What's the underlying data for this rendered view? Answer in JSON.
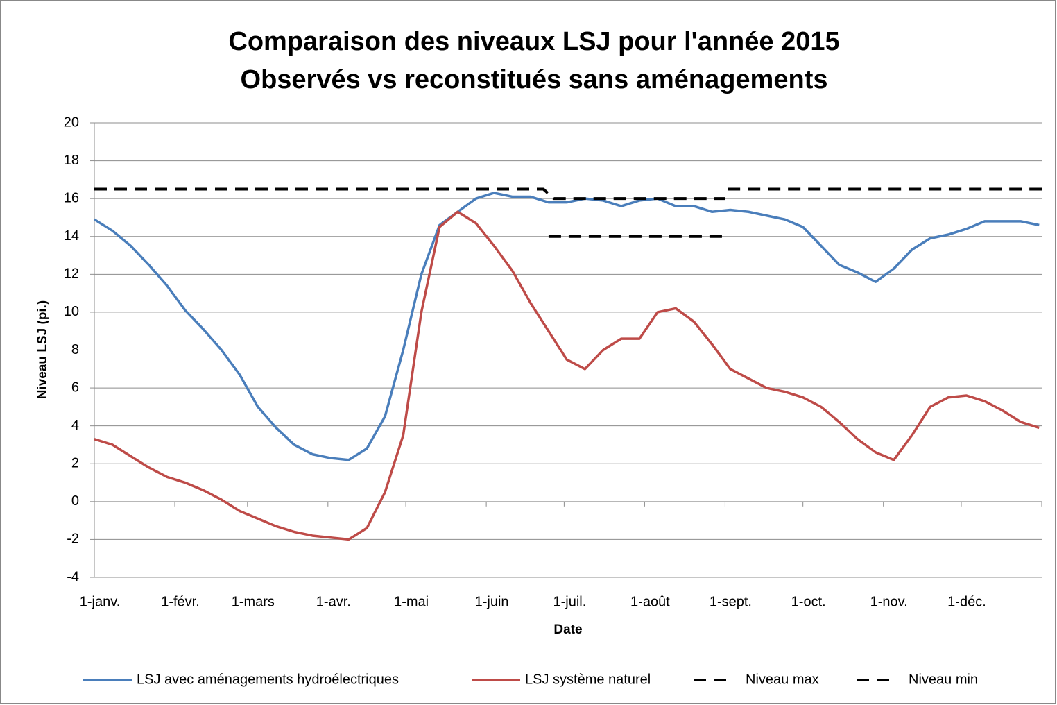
{
  "chart_data": {
    "type": "line",
    "title": "Comparaison des niveaux LSJ pour l'année 2015",
    "subtitle": "Observés vs reconstitués sans aménagements",
    "x_label": "Date",
    "y_label": "Niveau LSJ (pi.)",
    "xlim": [
      0,
      365
    ],
    "ylim": [
      -4,
      20
    ],
    "yticks": [
      -4,
      -2,
      0,
      2,
      4,
      6,
      8,
      10,
      12,
      14,
      16,
      18,
      20
    ],
    "xticks": [
      {
        "value": 0,
        "label": "1-janv."
      },
      {
        "value": 31,
        "label": "1-févr."
      },
      {
        "value": 59,
        "label": "1-mars"
      },
      {
        "value": 90,
        "label": "1-avr."
      },
      {
        "value": 120,
        "label": "1-mai"
      },
      {
        "value": 151,
        "label": "1-juin"
      },
      {
        "value": 181,
        "label": "1-juil."
      },
      {
        "value": 212,
        "label": "1-août"
      },
      {
        "value": 243,
        "label": "1-sept."
      },
      {
        "value": 273,
        "label": "1-oct."
      },
      {
        "value": 304,
        "label": "1-nov."
      },
      {
        "value": 334,
        "label": "1-déc."
      }
    ],
    "grid": true,
    "legend": "bottom",
    "x": [
      0,
      7,
      14,
      21,
      28,
      35,
      42,
      49,
      56,
      63,
      70,
      77,
      84,
      91,
      98,
      105,
      112,
      119,
      126,
      133,
      140,
      147,
      154,
      161,
      168,
      175,
      182,
      189,
      196,
      203,
      210,
      217,
      224,
      231,
      238,
      245,
      252,
      259,
      266,
      273,
      280,
      287,
      294,
      301,
      308,
      315,
      322,
      329,
      336,
      343,
      350,
      357,
      364
    ],
    "series": [
      {
        "name": "LSJ avec aménagements hydroélectriques",
        "color": "#4a7ebb",
        "dash": false,
        "values": [
          14.9,
          14.3,
          13.5,
          12.5,
          11.4,
          10.1,
          9.1,
          8.0,
          6.7,
          5.0,
          3.9,
          3.0,
          2.5,
          2.3,
          2.2,
          2.8,
          4.5,
          8.0,
          12.0,
          14.6,
          15.3,
          16.0,
          16.3,
          16.1,
          16.1,
          15.8,
          15.8,
          16.0,
          15.9,
          15.6,
          15.9,
          16.0,
          15.6,
          15.6,
          15.3,
          15.4,
          15.3,
          15.1,
          14.9,
          14.5,
          13.5,
          12.5,
          12.1,
          11.6,
          12.3,
          13.3,
          13.9,
          14.1,
          14.4,
          14.8,
          14.8,
          14.8,
          14.6
        ]
      },
      {
        "name": "LSJ système naturel",
        "color": "#be4b48",
        "dash": false,
        "values": [
          3.3,
          3.0,
          2.4,
          1.8,
          1.3,
          1.0,
          0.6,
          0.1,
          -0.5,
          -0.9,
          -1.3,
          -1.6,
          -1.8,
          -1.9,
          -2.0,
          -1.4,
          0.5,
          3.5,
          10.0,
          14.5,
          15.3,
          14.7,
          13.5,
          12.2,
          10.5,
          9.0,
          7.5,
          7.0,
          8.0,
          8.6,
          8.6,
          10.0,
          10.2,
          9.5,
          8.3,
          7.0,
          6.5,
          6.0,
          5.8,
          5.5,
          5.0,
          4.2,
          3.3,
          2.6,
          2.2,
          3.5,
          5.0,
          5.5,
          5.6,
          5.3,
          4.8,
          4.2,
          3.9
        ]
      },
      {
        "name": "Niveau max",
        "color": "#000000",
        "dash": true,
        "x": [
          0,
          173,
          177,
          243,
          243,
          244,
          365
        ],
        "values": [
          16.5,
          16.5,
          16,
          16,
          null,
          16.5,
          16.5
        ]
      },
      {
        "name": "Niveau min",
        "color": "#000000",
        "dash": true,
        "x": [
          175,
          243
        ],
        "values": [
          14,
          14
        ]
      }
    ]
  }
}
